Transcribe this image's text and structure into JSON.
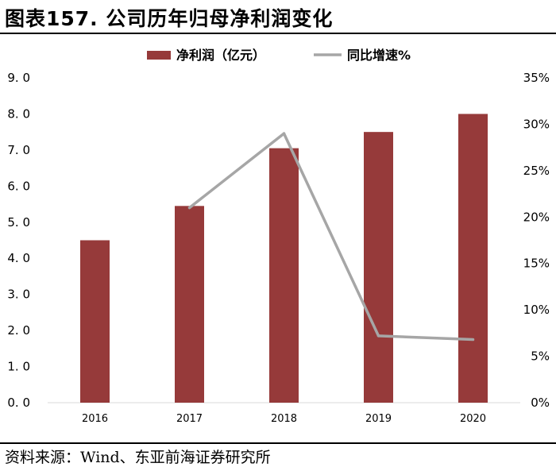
{
  "figure": {
    "title": "图表157. 公司历年归母净利润变化",
    "source": "资料来源：Wind、东亚前海证券研究所"
  },
  "colors": {
    "bar": "#963a3a",
    "line": "#a6a6a6",
    "axis": "#d9d9d9"
  },
  "chart_data": {
    "type": "bar+line",
    "categories": [
      "2016",
      "2017",
      "2018",
      "2019",
      "2020"
    ],
    "series": [
      {
        "name": "净利润（亿元）",
        "type": "bar",
        "axis": "left",
        "values": [
          4.5,
          5.45,
          7.05,
          7.5,
          8.0
        ]
      },
      {
        "name": "同比增速%",
        "type": "line",
        "axis": "right",
        "values": [
          null,
          21.0,
          29.0,
          7.2,
          6.8
        ]
      }
    ],
    "left_axis": {
      "min": 0,
      "max": 9,
      "step": 1,
      "tick_labels": [
        "0. 0",
        "1. 0",
        "2. 0",
        "3. 0",
        "4. 0",
        "5. 0",
        "6. 0",
        "7. 0",
        "8. 0",
        "9. 0"
      ]
    },
    "right_axis": {
      "min": 0,
      "max": 35,
      "step": 5,
      "tick_labels": [
        "0%",
        "5%",
        "10%",
        "15%",
        "20%",
        "25%",
        "30%",
        "35%"
      ]
    },
    "legend_position": "top-center",
    "grid": false
  }
}
